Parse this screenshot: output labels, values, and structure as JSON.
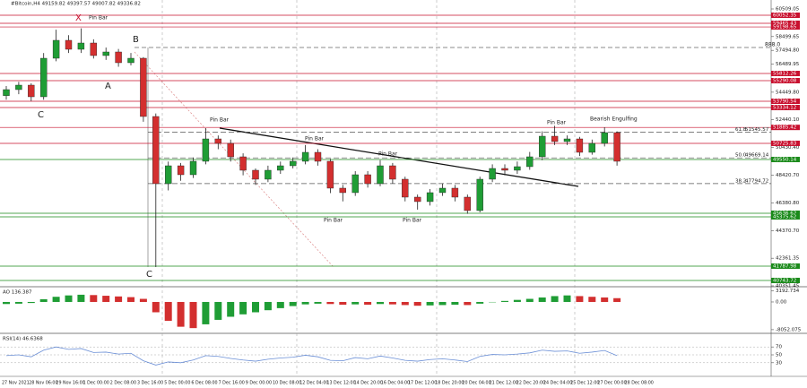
{
  "header": "#Bitcoin,H4 49159.82 49397.57 49007.82 49336.82",
  "chart_data": [
    {
      "type": "candlestick",
      "open": [
        54200,
        54638,
        54964,
        54116,
        56921,
        58226,
        57573,
        58030,
        57117,
        57378,
        56595,
        56921,
        52681,
        47789,
        49093,
        48441,
        49420,
        51050,
        50724,
        49746,
        48767,
        48115,
        48767,
        49093,
        49420,
        50072,
        49420,
        47463,
        47137,
        48441,
        47789,
        49093,
        48115,
        46810,
        46485,
        47137,
        47463,
        46810,
        45832,
        48115,
        48898,
        48767,
        49028,
        49746,
        51246,
        50855,
        51050,
        50072,
        50724,
        51507
      ],
      "high": [
        54900,
        55200,
        55100,
        57300,
        59000,
        58600,
        59100,
        58300,
        57700,
        57600,
        57300,
        57000,
        52900,
        49400,
        49300,
        49700,
        51836,
        51300,
        51000,
        50000,
        48900,
        49100,
        49400,
        49700,
        50600,
        50300,
        49600,
        47700,
        48700,
        48700,
        49500,
        49300,
        48300,
        47000,
        47400,
        47800,
        47700,
        47000,
        48300,
        49200,
        49200,
        49400,
        50100,
        51600,
        52000,
        51300,
        51200,
        51000,
        51900,
        51600
      ],
      "low": [
        53900,
        54300,
        53800,
        53900,
        56700,
        57300,
        57300,
        56900,
        56800,
        56300,
        56400,
        52300,
        41722,
        47300,
        48000,
        48200,
        49200,
        50300,
        49400,
        48400,
        47700,
        47900,
        48500,
        48900,
        49200,
        49100,
        47100,
        46500,
        46900,
        47500,
        47600,
        47800,
        46500,
        45900,
        46200,
        46900,
        46500,
        45600,
        45700,
        47900,
        48400,
        48500,
        48800,
        49500,
        50600,
        50600,
        49800,
        49900,
        50500,
        49100
      ],
      "close": [
        54638,
        54964,
        54116,
        56921,
        58226,
        57573,
        58030,
        57117,
        57378,
        56595,
        56921,
        52681,
        47789,
        49093,
        48441,
        49420,
        51050,
        50724,
        49746,
        48767,
        48115,
        48767,
        49093,
        49420,
        50072,
        49420,
        47463,
        47137,
        48441,
        47789,
        49093,
        48115,
        46810,
        46485,
        47137,
        47463,
        46810,
        45832,
        48115,
        48898,
        48767,
        49028,
        49746,
        51246,
        50855,
        51050,
        50072,
        50724,
        51507,
        49420
      ],
      "up_color": "#1f9d35",
      "down_color": "#d32f2f",
      "ylim": [
        40351.45,
        61161
      ],
      "yticks": [
        60509.05,
        58499.65,
        {
          "value": 57494.8,
          "label": "57494.80"
        },
        56489.95,
        {
          "value": 54449.8,
          "label": "54449.80"
        },
        {
          "value": 52440.1,
          "label": "52440.10"
        },
        {
          "value": 50430.4,
          "label": "50430.40"
        },
        {
          "value": 48420.7,
          "label": "48420.70"
        },
        {
          "value": 46380.8,
          "label": "46380.80"
        },
        {
          "value": 44370.7,
          "label": "44370.70"
        },
        42361.35,
        40351.45
      ],
      "levels": [
        {
          "value": 60052.35,
          "color": "#c8102e"
        },
        {
          "value": 59465.43,
          "color": "#c8102e"
        },
        {
          "value": 59198.65,
          "color": "#c8102e"
        },
        {
          "value": 55812.26,
          "color": "#c8102e"
        },
        {
          "value": 55290.08,
          "color": "#c8102e"
        },
        {
          "value": 53790.54,
          "color": "#c8102e"
        },
        {
          "value": 53334.12,
          "color": "#c8102e"
        },
        {
          "value": 51885.42,
          "color": "#c8102e"
        },
        {
          "value": 50725.83,
          "color": "#c8102e"
        },
        {
          "value": 49550.14,
          "color": "#1a8a1a"
        },
        {
          "value": 45636.62,
          "color": "#1a8a1a"
        },
        {
          "value": 45375.62,
          "color": "#1a8a1a"
        },
        {
          "value": 41787.98,
          "color": "#1a8a1a"
        },
        {
          "value": 40743.72,
          "color": "#1a8a1a"
        }
      ],
      "fib": [
        {
          "level": "61.8",
          "price": 51545.57
        },
        {
          "level": "50.0",
          "price": 49669.14
        },
        {
          "level": "38.2",
          "price": 47794.72
        }
      ],
      "annotations": [
        "X",
        "Pin Bar",
        "B",
        "A",
        "C",
        "C",
        "Pin Bar",
        "Pin Bar",
        "Pin Bar",
        "Pin Bar",
        "Pin Bar",
        "Pin Bar",
        "Bearish Engulfing",
        "888.0"
      ],
      "time_labels": [
        "27 Nov 2021",
        "28 Nov 06:00",
        "29 Nov 16:00",
        "1 Dec 00:00",
        "2 Dec 08:00",
        "3 Dec 16:00",
        "5 Dec 00:00",
        "6 Dec 08:00",
        "7 Dec 16:00",
        "9 Dec 00:00",
        "10 Dec 08:00",
        "12 Dec 04:00",
        "13 Dec 12:00",
        "14 Dec 20:00",
        "16 Dec 04:00",
        "17 Dec 12:00",
        "18 Dec 20:00",
        "20 Dec 04:00",
        "21 Dec 12:00",
        "22 Dec 20:00",
        "24 Dec 04:00",
        "25 Dec 12:00",
        "27 Dec 00:00",
        "28 Dec 08:00"
      ]
    },
    {
      "type": "bar",
      "title": "AO 136.387",
      "values": [
        -600,
        -500,
        -300,
        800,
        1500,
        1900,
        2100,
        2000,
        1800,
        1600,
        1400,
        900,
        -3000,
        -5500,
        -7200,
        -7600,
        -6500,
        -5200,
        -4300,
        -3600,
        -3000,
        -2400,
        -1800,
        -1200,
        -700,
        -500,
        -600,
        -800,
        -700,
        -800,
        -600,
        -700,
        -900,
        -1100,
        -1000,
        -900,
        -800,
        -900,
        -500,
        -100,
        300,
        600,
        900,
        1300,
        1700,
        1900,
        1700,
        1500,
        1300,
        1100
      ],
      "up_color": "#1f9d35",
      "down_color": "#d32f2f",
      "ylim": [
        -8600,
        3900
      ],
      "yticks": [
        3192.734,
        {
          "value": 0,
          "label": "0.00"
        },
        -8052.075
      ]
    },
    {
      "type": "line",
      "title": "RSI(14) 46.6368",
      "color": "#6b8fd6",
      "values": [
        48,
        50,
        45,
        62,
        70,
        64,
        66,
        56,
        57,
        52,
        54,
        35,
        24,
        32,
        30,
        37,
        48,
        46,
        41,
        37,
        34,
        39,
        42,
        44,
        49,
        45,
        36,
        35,
        43,
        40,
        47,
        42,
        36,
        34,
        38,
        40,
        37,
        33,
        46,
        51,
        50,
        52,
        55,
        62,
        59,
        60,
        54,
        57,
        61,
        48
      ],
      "ylim": [
        0,
        100
      ],
      "yticks": [
        70,
        50,
        30
      ]
    }
  ]
}
